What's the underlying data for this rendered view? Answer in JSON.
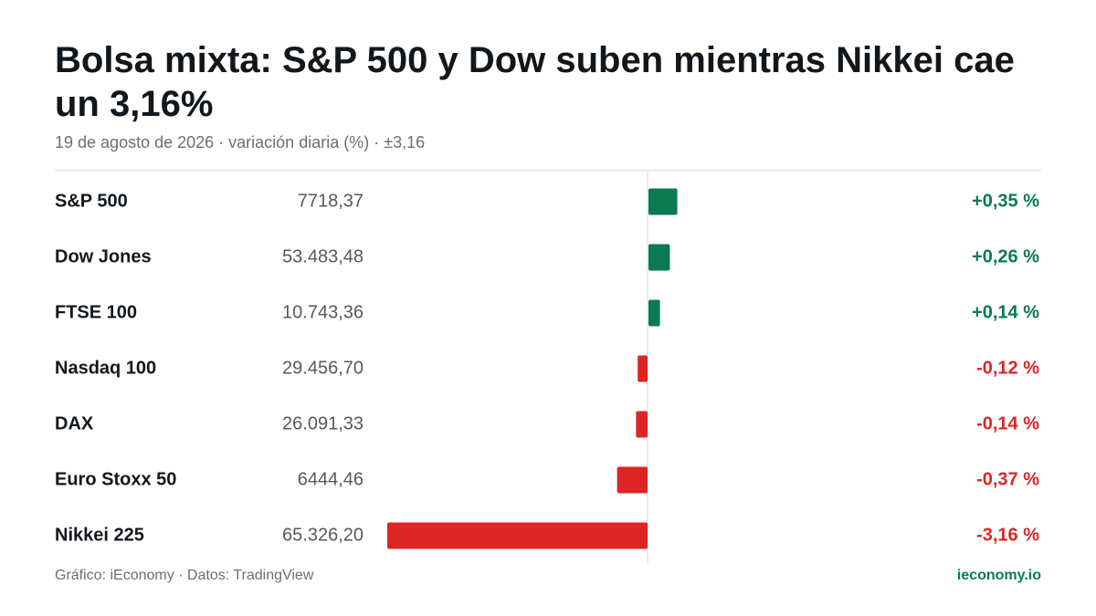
{
  "title": "Bolsa mixta: S&P 500 y Dow suben mientras Nikkei cae un 3,16%",
  "subtitle": "19 de agosto de 2026 · variación diaria (%) · ±3,16",
  "footer": {
    "source": "Gráfico: iEconomy · Datos: TradingView",
    "brand": "ieconomy.io"
  },
  "colors": {
    "positive": "#0b7a52",
    "negative": "#dc2626"
  },
  "chart_data": {
    "type": "bar",
    "orientation": "horizontal",
    "categories": [
      "S&P 500",
      "Dow Jones",
      "FTSE 100",
      "Nasdaq 100",
      "DAX",
      "Euro Stoxx 50",
      "Nikkei 225"
    ],
    "levels": [
      "7718,37",
      "53.483,48",
      "10.743,36",
      "29.456,70",
      "26.091,33",
      "6444,46",
      "65.326,20"
    ],
    "values": [
      0.35,
      0.26,
      0.14,
      -0.12,
      -0.14,
      -0.37,
      -3.16
    ],
    "value_labels": [
      "+0,35 %",
      "+0,26 %",
      "+0,14 %",
      "-0,12 %",
      "-0,14 %",
      "-0,37 %",
      "-3,16 %"
    ],
    "xlim": [
      -3.16,
      3.16
    ],
    "grid": false,
    "legend": "none"
  }
}
